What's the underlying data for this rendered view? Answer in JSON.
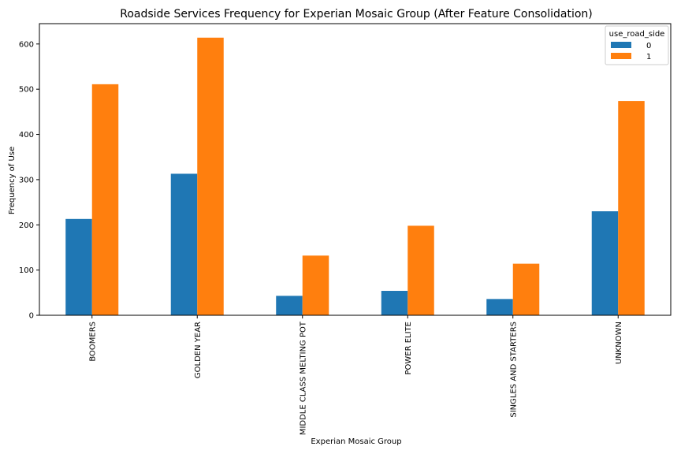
{
  "chart_data": {
    "type": "bar",
    "title": "Roadside Services Frequency for Experian Mosaic Group (After Feature Consolidation)",
    "xlabel": "Experian Mosaic Group",
    "ylabel": "Frequency of Use",
    "categories": [
      "BOOMERS",
      "GOLDEN YEAR",
      "MIDDLE CLASS MELTING POT",
      "POWER ELITE",
      "SINGLES AND STARTERS",
      "UNKNOWN"
    ],
    "series": [
      {
        "name": "0",
        "color": "#1f77b4",
        "values": [
          213,
          313,
          43,
          54,
          36,
          230
        ]
      },
      {
        "name": "1",
        "color": "#ff7f0e",
        "values": [
          511,
          614,
          132,
          198,
          114,
          474
        ]
      }
    ],
    "ylim": [
      0,
      645
    ],
    "yticks": [
      0,
      100,
      200,
      300,
      400,
      500,
      600
    ],
    "grid": false,
    "legend": {
      "title": "use_road_side",
      "placement": "top-right"
    }
  }
}
